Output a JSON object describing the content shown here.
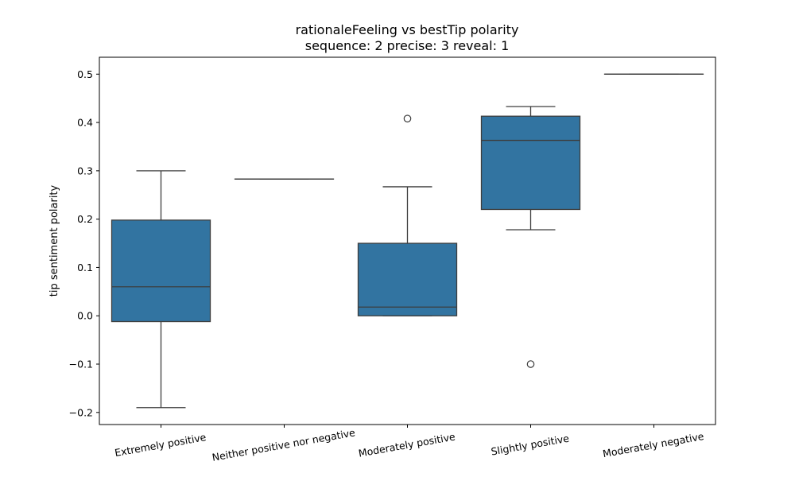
{
  "chart_data": {
    "type": "box",
    "title": "rationaleFeeling vs bestTip polarity",
    "subtitle": "sequence: 2  precise: 3  reveal: 1",
    "xlabel": "rationaleFeeling",
    "ylabel": "tip sentiment polarity",
    "ylim": [
      -0.225,
      0.535
    ],
    "yticks": [
      -0.2,
      -0.1,
      0.0,
      0.1,
      0.2,
      0.3,
      0.4,
      0.5
    ],
    "ytick_labels": [
      "−0.2",
      "−0.1",
      "0.0",
      "0.1",
      "0.2",
      "0.3",
      "0.4",
      "0.5"
    ],
    "box_color": "#3274a1",
    "line_color": "#3d3d3d",
    "grid": false,
    "categories": [
      "Extremely positive",
      "Neither positive nor negative",
      "Moderately positive",
      "Slightly positive",
      "Moderately negative"
    ],
    "boxes": [
      {
        "category": "Extremely positive",
        "whisker_low": -0.19,
        "q1": -0.012,
        "median": 0.06,
        "q3": 0.198,
        "whisker_high": 0.3,
        "outliers": []
      },
      {
        "category": "Neither positive nor negative",
        "whisker_low": 0.283,
        "q1": 0.283,
        "median": 0.283,
        "q3": 0.283,
        "whisker_high": 0.283,
        "outliers": []
      },
      {
        "category": "Moderately positive",
        "whisker_low": 0.0,
        "q1": 0.0,
        "median": 0.018,
        "q3": 0.15,
        "whisker_high": 0.267,
        "outliers": [
          0.408
        ]
      },
      {
        "category": "Slightly positive",
        "whisker_low": 0.178,
        "q1": 0.22,
        "median": 0.363,
        "q3": 0.413,
        "whisker_high": 0.433,
        "outliers": [
          -0.1
        ]
      },
      {
        "category": "Moderately negative",
        "whisker_low": 0.5,
        "q1": 0.5,
        "median": 0.5,
        "q3": 0.5,
        "whisker_high": 0.5,
        "outliers": []
      }
    ]
  }
}
